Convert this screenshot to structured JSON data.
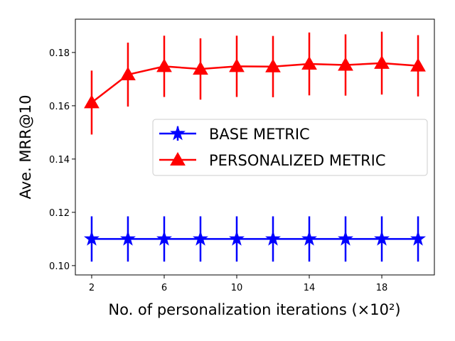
{
  "chart_data": {
    "type": "line",
    "title": "",
    "xlabel": "No. of personalization iterations (×10²)",
    "ylabel": "Ave. MRR@10",
    "x": [
      2,
      4,
      6,
      8,
      10,
      12,
      14,
      16,
      18,
      20
    ],
    "xticks": [
      2,
      6,
      10,
      14,
      18
    ],
    "yticks": [
      0.1,
      0.12,
      0.14,
      0.16,
      0.18
    ],
    "xlim": [
      1.1,
      20.9
    ],
    "ylim": [
      0.0965,
      0.1925
    ],
    "grid": false,
    "legend_position": "center-right",
    "series": [
      {
        "name": "BASE METRIC",
        "color": "#0000ff",
        "marker": "star",
        "values": [
          0.11,
          0.11,
          0.11,
          0.11,
          0.11,
          0.11,
          0.11,
          0.11,
          0.11,
          0.11
        ],
        "errors": [
          0.0085,
          0.0085,
          0.0085,
          0.0085,
          0.0085,
          0.0085,
          0.0085,
          0.0085,
          0.0085,
          0.0085
        ]
      },
      {
        "name": "PERSONALIZED METRIC",
        "color": "#ff0000",
        "marker": "triangle",
        "values": [
          0.1612,
          0.1717,
          0.1748,
          0.1738,
          0.1748,
          0.1747,
          0.1757,
          0.1753,
          0.176,
          0.175
        ],
        "errors": [
          0.012,
          0.012,
          0.0115,
          0.0115,
          0.0115,
          0.0115,
          0.0118,
          0.0115,
          0.0118,
          0.0115
        ]
      }
    ]
  }
}
